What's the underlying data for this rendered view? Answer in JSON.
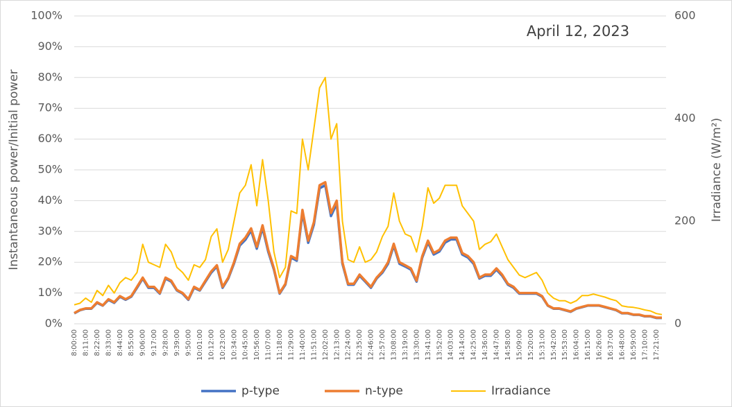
{
  "chart_data": {
    "type": "line",
    "annotation": "April 12, 2023",
    "ylabel": "Instantaneous power/Initial power",
    "y2label": "Irradiance  (W/m²)",
    "categories": [
      "8:00:00",
      null,
      "8:11:00",
      null,
      "8:22:00",
      null,
      "8:33:00",
      null,
      "8:44:00",
      null,
      "8:55:00",
      null,
      "9:06:00",
      null,
      "9:17:00",
      null,
      "9:28:00",
      null,
      "9:39:00",
      null,
      "9:50:00",
      null,
      "10:01:00",
      null,
      "10:12:00",
      null,
      "10:23:00",
      null,
      "10:34:00",
      null,
      "10:45:00",
      null,
      "10:56:00",
      null,
      "11:07:00",
      null,
      "11:18:00",
      null,
      "11:29:00",
      null,
      "11:40:00",
      null,
      "11:51:00",
      null,
      "12:02:00",
      null,
      "12:13:00",
      null,
      "12:24:00",
      null,
      "12:35:00",
      null,
      "12:46:00",
      null,
      "12:57:00",
      null,
      "13:08:00",
      null,
      "13:19:00",
      null,
      "13:30:00",
      null,
      "13:41:00",
      null,
      "13:52:00",
      null,
      "14:03:00",
      null,
      "14:14:00",
      null,
      "14:25:00",
      null,
      "14:36:00",
      null,
      "14:47:00",
      null,
      "14:58:00",
      null,
      "15:09:00",
      null,
      "15:20:00",
      null,
      "15:31:00",
      null,
      "15:42:00",
      null,
      "15:53:00",
      null,
      "16:04:00",
      null,
      "16:15:00",
      null,
      "16:26:00",
      null,
      "16:37:00",
      null,
      "16:48:00",
      null,
      "16:59:00",
      null,
      "17:10:00",
      null,
      "17:21:00",
      null
    ],
    "series": [
      {
        "name": "p-type",
        "color": "#4472c4",
        "values": [
          3.4,
          4.4,
          4.9,
          4.9,
          6.8,
          5.9,
          7.8,
          6.8,
          8.8,
          7.8,
          8.8,
          11.7,
          14.7,
          11.7,
          11.7,
          9.8,
          14.7,
          13.7,
          10.8,
          9.8,
          7.8,
          11.7,
          10.8,
          13.7,
          16.6,
          18.6,
          11.7,
          14.7,
          19.6,
          25.4,
          27.3,
          30.3,
          24.4,
          31.2,
          23.4,
          17.6,
          9.8,
          12.7,
          21.5,
          20.5,
          36.1,
          26.3,
          32.2,
          44,
          45,
          35,
          39,
          19.5,
          12.7,
          12.7,
          15.6,
          13.7,
          11.7,
          14.7,
          16.6,
          19.5,
          25.4,
          19.5,
          18.6,
          17.6,
          13.7,
          21.5,
          26.4,
          22.5,
          23.5,
          26.4,
          27.4,
          27.4,
          22.5,
          21.5,
          19.5,
          14.7,
          15.6,
          15.6,
          17.6,
          15.6,
          12.7,
          11.7,
          9.8,
          9.8,
          9.8,
          9.8,
          8.8,
          5.9,
          4.9,
          4.9,
          4.4,
          3.9,
          4.9,
          5.4,
          5.9,
          5.9,
          5.9,
          5.4,
          4.9,
          4.4,
          3.4,
          3.4,
          2.9,
          2.9,
          2.4,
          2.4,
          1.9,
          1.9
        ]
      },
      {
        "name": "n-type",
        "color": "#ed7d31",
        "values": [
          3.5,
          4.5,
          5,
          5,
          7,
          6,
          8,
          7,
          9,
          8,
          9,
          12,
          15,
          12,
          12,
          10,
          15,
          14,
          11,
          10,
          8,
          12,
          11,
          14,
          17,
          19,
          12,
          15,
          20,
          26,
          28,
          31,
          25,
          32,
          24,
          18,
          10,
          13,
          22,
          21,
          37,
          27,
          33,
          45,
          46,
          36,
          40,
          20,
          13,
          13,
          16,
          14,
          12,
          15,
          17,
          20,
          26,
          20,
          19,
          18,
          14,
          22,
          27,
          23,
          24,
          27,
          28,
          28,
          23,
          22,
          20,
          15,
          16,
          16,
          18,
          16,
          13,
          12,
          10,
          10,
          10,
          10,
          9,
          6,
          5,
          5,
          4.5,
          4,
          5,
          5.5,
          6,
          6,
          6,
          5.5,
          5,
          4.5,
          3.5,
          3.5,
          3,
          3,
          2.5,
          2.5,
          2,
          2
        ]
      },
      {
        "name": "Irradiance",
        "color": "#ffc000",
        "axis": "y2",
        "values": [
          37,
          40,
          50,
          42,
          65,
          55,
          75,
          60,
          80,
          90,
          85,
          100,
          155,
          120,
          115,
          110,
          155,
          140,
          110,
          100,
          85,
          115,
          110,
          125,
          170,
          185,
          120,
          145,
          200,
          255,
          270,
          310,
          230,
          320,
          240,
          140,
          90,
          110,
          220,
          215,
          360,
          300,
          380,
          460,
          480,
          360,
          390,
          200,
          125,
          120,
          150,
          120,
          125,
          140,
          170,
          190,
          255,
          200,
          175,
          170,
          140,
          190,
          265,
          235,
          245,
          270,
          270,
          270,
          230,
          215,
          200,
          145,
          155,
          160,
          175,
          150,
          125,
          110,
          95,
          90,
          95,
          100,
          85,
          60,
          50,
          45,
          45,
          40,
          45,
          55,
          55,
          58,
          55,
          52,
          48,
          45,
          35,
          33,
          32,
          30,
          27,
          25,
          20,
          18
        ]
      }
    ],
    "ylim": [
      0,
      100
    ],
    "yticks": [
      {
        "value": 0,
        "label": "0%"
      },
      {
        "value": 10,
        "label": "10%"
      },
      {
        "value": 20,
        "label": "20%"
      },
      {
        "value": 30,
        "label": "30%"
      },
      {
        "value": 40,
        "label": "40%"
      },
      {
        "value": 50,
        "label": "50%"
      },
      {
        "value": 60,
        "label": "60%"
      },
      {
        "value": 70,
        "label": "70%"
      },
      {
        "value": 80,
        "label": "80%"
      },
      {
        "value": 90,
        "label": "90%"
      },
      {
        "value": 100,
        "label": "100%"
      }
    ],
    "y2lim": [
      0,
      600
    ],
    "y2ticks": [
      0,
      200,
      400,
      600
    ],
    "grid": true
  }
}
